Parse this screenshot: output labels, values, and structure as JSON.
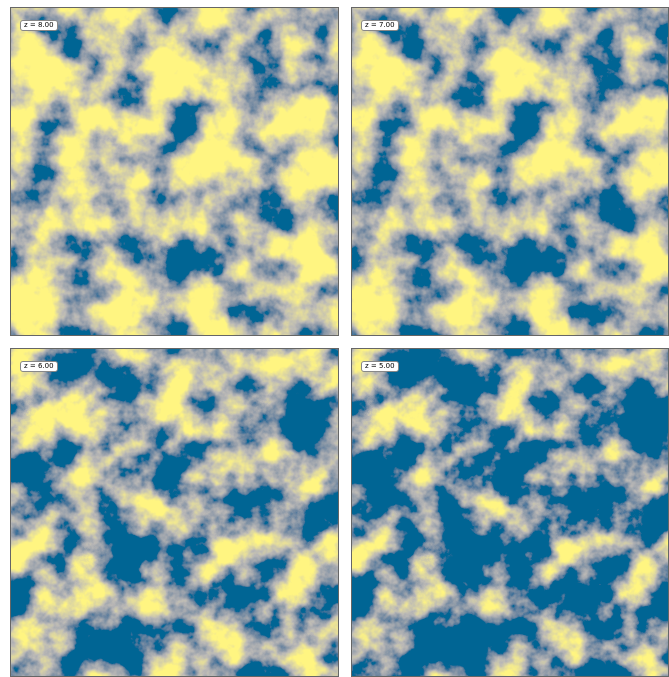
{
  "panels": [
    {
      "label": "z = 8.00"
    },
    {
      "label": "z = 7.00"
    },
    {
      "label": "z = 6.00"
    },
    {
      "label": "z = 5.00"
    }
  ]
}
